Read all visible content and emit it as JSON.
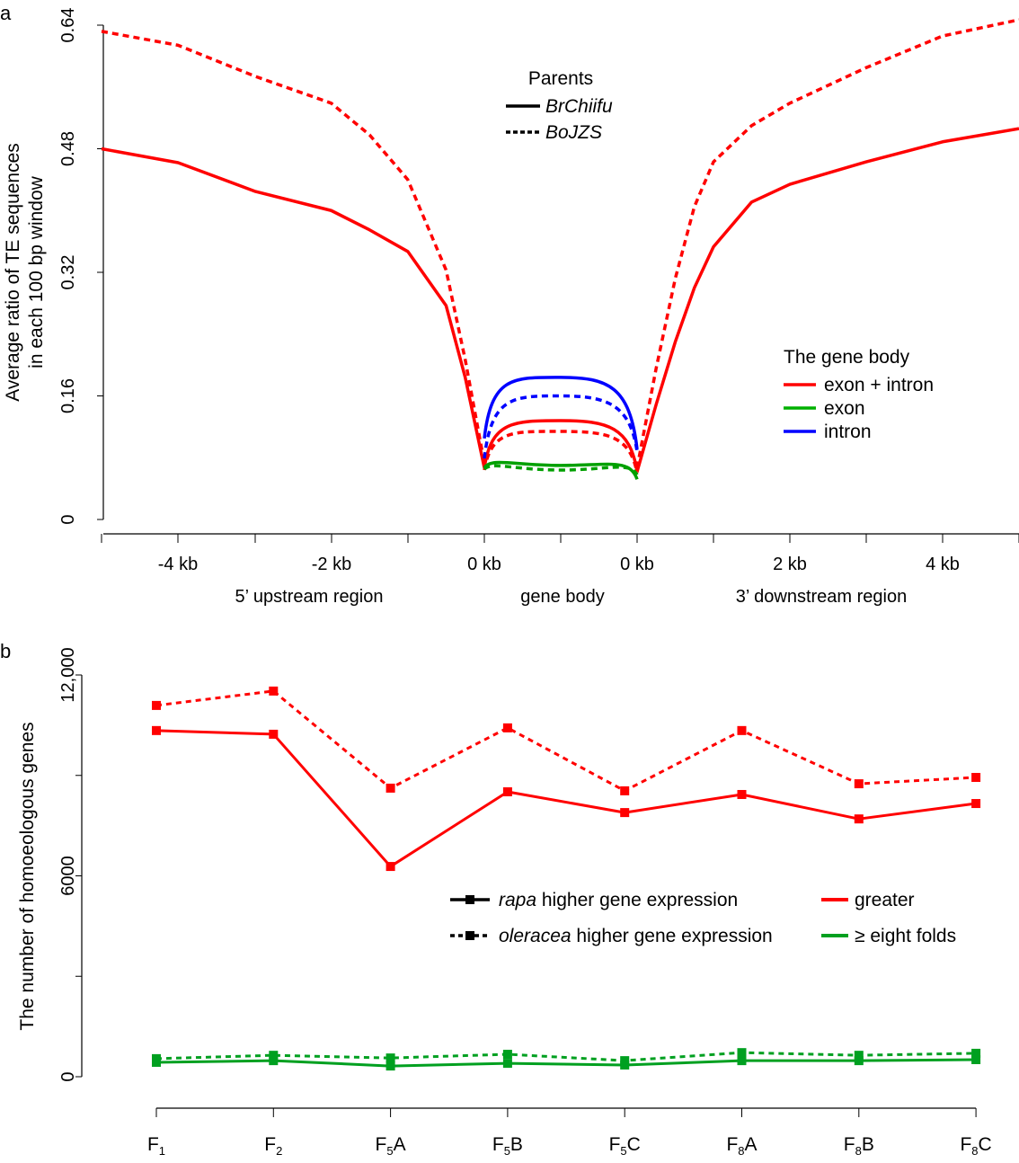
{
  "chart_data": [
    {
      "panel_label": "a",
      "type": "line",
      "ylabel_lines": [
        "Average ratio of TE sequences",
        "in each 100 bp window"
      ],
      "ylim": [
        0,
        0.64
      ],
      "yticks": [
        "0",
        "0.16",
        "0.32",
        "0.48",
        "0.64"
      ],
      "ytick_values": [
        0,
        0.16,
        0.32,
        0.48,
        0.64
      ],
      "xtick_labels": [
        "-4 kb",
        "-2 kb",
        "0 kb",
        "0 kb",
        "2 kb",
        "4 kb"
      ],
      "region_labels": [
        "5’ upstream region",
        "gene body",
        "3’ downstream region"
      ],
      "legend_parents": {
        "title": "Parents",
        "items": [
          {
            "label": "BrChiifu",
            "style": "solid"
          },
          {
            "label": "BoJZS",
            "style": "dashed"
          }
        ]
      },
      "legend_body": {
        "title": "The gene body",
        "items": [
          {
            "label": "exon + intron",
            "color": "#ff0000"
          },
          {
            "label": "exon",
            "color": "#00b000"
          },
          {
            "label": "intron",
            "color": "#0000ff"
          }
        ]
      },
      "upstream_x_kb": [
        -5,
        -4,
        -3,
        -2,
        -1.5,
        -1,
        -0.5,
        -0.25,
        0
      ],
      "downstream_x_kb": [
        0,
        0.25,
        0.5,
        0.75,
        1,
        1.5,
        2,
        3,
        4,
        5
      ],
      "genebody_x_pct": [
        0,
        25,
        50,
        75,
        100
      ],
      "series": [
        {
          "region": "exon + intron",
          "parent": "BrChiifu",
          "color": "#ff0000",
          "style": "solid",
          "upstream": [
            0.48,
            0.462,
            0.425,
            0.4,
            0.375,
            0.347,
            0.277,
            0.184,
            0.067
          ],
          "genebody": [
            0.067,
            0.116,
            0.128,
            0.108,
            0.062
          ],
          "downstream": [
            0.062,
            0.149,
            0.23,
            0.3,
            0.353,
            0.411,
            0.434,
            0.463,
            0.489,
            0.506
          ]
        },
        {
          "region": "exon + intron",
          "parent": "BoJZS",
          "color": "#ff0000",
          "style": "dashed",
          "upstream": [
            0.632,
            0.614,
            0.574,
            0.539,
            0.498,
            0.44,
            0.323,
            0.207,
            0.073
          ],
          "genebody": [
            0.064,
            0.105,
            0.114,
            0.097,
            0.06
          ],
          "downstream": [
            0.067,
            0.196,
            0.312,
            0.405,
            0.463,
            0.51,
            0.539,
            0.585,
            0.626,
            0.647
          ]
        },
        {
          "region": "intron",
          "parent": "BrChiifu",
          "color": "#0000ff",
          "style": "solid",
          "genebody": [
            0.105,
            0.175,
            0.184,
            0.161,
            0.091
          ]
        },
        {
          "region": "intron",
          "parent": "BoJZS",
          "color": "#0000ff",
          "style": "dashed",
          "genebody": [
            0.079,
            0.149,
            0.16,
            0.137,
            0.088
          ]
        },
        {
          "region": "exon",
          "parent": "BrChiifu",
          "color": "#00a000",
          "style": "solid",
          "genebody": [
            0.067,
            0.069,
            0.07,
            0.068,
            0.052
          ]
        },
        {
          "region": "exon",
          "parent": "BoJZS",
          "color": "#00a000",
          "style": "dashed",
          "genebody": [
            0.065,
            0.064,
            0.064,
            0.064,
            0.058
          ]
        }
      ]
    },
    {
      "panel_label": "b",
      "type": "line",
      "ylabel": "The number of homoeologous genes",
      "ylim": [
        0,
        12000
      ],
      "yticks": [
        "0",
        "6000",
        "12,000"
      ],
      "ytick_values": [
        0,
        6000,
        12000
      ],
      "categories": [
        [
          "F",
          "1",
          ""
        ],
        [
          "F",
          "2",
          ""
        ],
        [
          "F",
          "5",
          "A"
        ],
        [
          "F",
          "5",
          "B"
        ],
        [
          "F",
          "5",
          "C"
        ],
        [
          "F",
          "8",
          "A"
        ],
        [
          "F",
          "8",
          "B"
        ],
        [
          "F",
          "8",
          "C"
        ]
      ],
      "legend": [
        {
          "label_italic": "rapa",
          "label": " higher gene expression",
          "style": "solid"
        },
        {
          "label_italic": "oleracea",
          "label": " higher gene expression",
          "style": "dashed"
        },
        {
          "label": "greater",
          "color": "#ff0000"
        },
        {
          "label": "≥ eight folds",
          "color": "#00a020"
        }
      ],
      "series": [
        {
          "group": "rapa",
          "level": "greater",
          "color": "#ff0000",
          "style": "solid",
          "values": [
            10340,
            10230,
            6280,
            8510,
            7890,
            8430,
            7700,
            8160
          ]
        },
        {
          "group": "oleracea",
          "level": "greater",
          "color": "#ff0000",
          "style": "dashed",
          "values": [
            11090,
            11520,
            8620,
            10420,
            8540,
            10340,
            8750,
            8940
          ]
        },
        {
          "group": "rapa",
          "level": "eight folds",
          "color": "#00a020",
          "style": "solid",
          "values": [
            430,
            480,
            320,
            400,
            350,
            480,
            480,
            510
          ]
        },
        {
          "group": "oleracea",
          "level": "eight folds",
          "color": "#00a020",
          "style": "dashed",
          "values": [
            540,
            640,
            560,
            670,
            480,
            720,
            640,
            700
          ]
        }
      ]
    }
  ]
}
